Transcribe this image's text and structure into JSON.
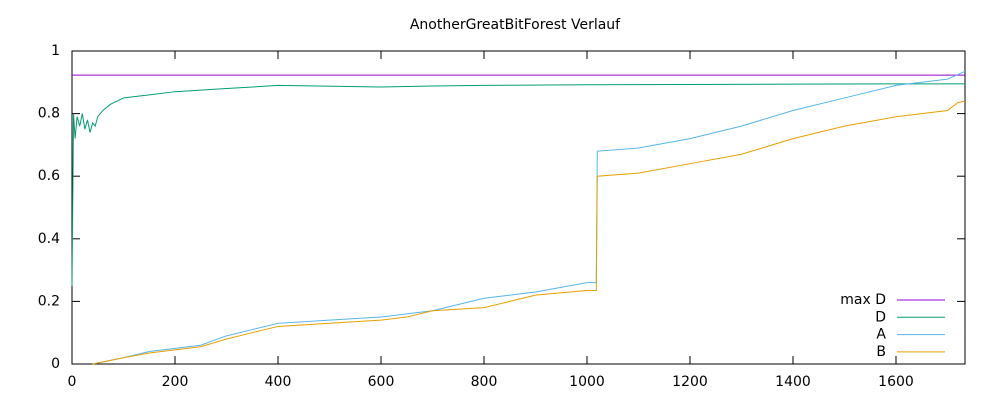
{
  "chart_data": {
    "type": "line",
    "title": "AnotherGreatBitForest Verlauf",
    "xlim": [
      0,
      1734
    ],
    "ylim": [
      0,
      1
    ],
    "xticks": [
      0,
      200,
      400,
      600,
      800,
      1000,
      1200,
      1400,
      1600
    ],
    "yticks": [
      0,
      0.2,
      0.4,
      0.6,
      0.8,
      1
    ],
    "legend": "bottom-right",
    "series": [
      {
        "name": "max D",
        "color": "#9400d3",
        "x": [
          0,
          1734
        ],
        "values": [
          0.923,
          0.923
        ]
      },
      {
        "name": "D",
        "color": "#009e73",
        "x": [
          0,
          3,
          6,
          10,
          15,
          20,
          25,
          30,
          35,
          40,
          45,
          50,
          60,
          75,
          100,
          150,
          200,
          300,
          400,
          600,
          700,
          800,
          1000,
          1200,
          1400,
          1600,
          1734
        ],
        "values": [
          0.25,
          0.8,
          0.72,
          0.79,
          0.76,
          0.8,
          0.75,
          0.78,
          0.74,
          0.77,
          0.76,
          0.79,
          0.81,
          0.83,
          0.85,
          0.86,
          0.87,
          0.88,
          0.89,
          0.885,
          0.888,
          0.89,
          0.892,
          0.893,
          0.894,
          0.895,
          0.895
        ]
      },
      {
        "name": "A",
        "color": "#56b4e9",
        "x": [
          40,
          100,
          150,
          250,
          300,
          350,
          400,
          500,
          600,
          700,
          750,
          800,
          900,
          1000,
          1018,
          1020,
          1100,
          1200,
          1300,
          1400,
          1500,
          1600,
          1700,
          1734
        ],
        "values": [
          0,
          0.02,
          0.04,
          0.06,
          0.09,
          0.11,
          0.13,
          0.14,
          0.15,
          0.17,
          0.19,
          0.21,
          0.23,
          0.26,
          0.26,
          0.68,
          0.69,
          0.72,
          0.76,
          0.81,
          0.85,
          0.89,
          0.91,
          0.935
        ]
      },
      {
        "name": "B",
        "color": "#e69f00",
        "x": [
          40,
          100,
          150,
          250,
          300,
          350,
          400,
          500,
          600,
          650,
          700,
          800,
          850,
          900,
          1000,
          1018,
          1020,
          1100,
          1200,
          1300,
          1400,
          1500,
          1600,
          1700,
          1720,
          1734
        ],
        "values": [
          0,
          0.02,
          0.035,
          0.055,
          0.08,
          0.1,
          0.12,
          0.13,
          0.14,
          0.15,
          0.17,
          0.18,
          0.2,
          0.22,
          0.235,
          0.235,
          0.6,
          0.61,
          0.64,
          0.67,
          0.72,
          0.76,
          0.79,
          0.81,
          0.835,
          0.84
        ]
      }
    ]
  }
}
